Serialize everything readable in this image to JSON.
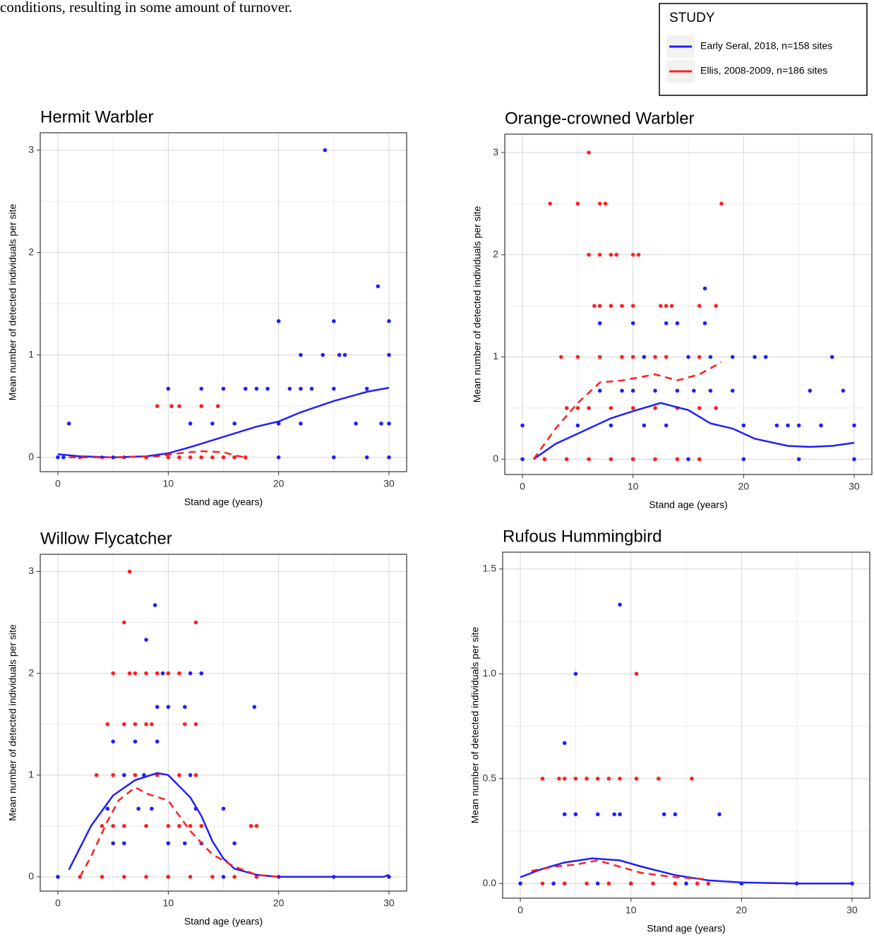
{
  "header_text": "conditions, resulting in some amount of turnover.",
  "legend": {
    "title": "STUDY"
  },
  "chart_data": [
    {
      "type": "scatter",
      "title": "Hermit Warbler",
      "x_label": "Stand age (years)",
      "y_label": "Mean number of detected individuals per site",
      "xlim": [
        -1.6,
        31.6
      ],
      "ylim": [
        -0.14,
        3.17
      ],
      "xticks": [
        0,
        10,
        20,
        30
      ],
      "yticks": [
        0,
        1,
        2,
        3
      ],
      "grid": true,
      "series": [
        {
          "name": "Early Seral, 2018, n=158 sites",
          "color": "#1f1fff",
          "line_style": "solid",
          "x": [
            0,
            0.5,
            1,
            5,
            10,
            13,
            12,
            14,
            15,
            16,
            17,
            18,
            19,
            20,
            20,
            21,
            22,
            22,
            23,
            24,
            24.2,
            25,
            25,
            25.5,
            26,
            27,
            28,
            29,
            29.3,
            30,
            30,
            30,
            30,
            25,
            20,
            16,
            22,
            28
          ],
          "values": [
            0,
            0,
            0.33,
            0,
            0.67,
            0.67,
            0.33,
            0.33,
            0.67,
            0.33,
            0.67,
            0.67,
            0.67,
            1.33,
            0.33,
            0.67,
            1,
            0.33,
            0.67,
            1,
            3,
            1.33,
            0.67,
            1,
            1,
            0.33,
            0.67,
            1.67,
            0.33,
            1.33,
            1,
            0.33,
            0,
            0,
            0,
            0,
            0.67,
            0
          ],
          "fit": {
            "x": [
              0,
              2,
              5,
              8,
              10,
              12,
              15,
              18,
              20,
              22,
              25,
              28,
              30
            ],
            "values": [
              0.03,
              0.01,
              0,
              0.01,
              0.04,
              0.1,
              0.2,
              0.3,
              0.35,
              0.44,
              0.55,
              0.64,
              0.68
            ]
          }
        },
        {
          "name": "Ellis, 2008-2009, n=186 sites",
          "color": "#ff1f1f",
          "line_style": "dashed",
          "x": [
            9,
            10.3,
            11,
            13,
            14.5,
            2,
            4,
            6,
            8,
            10,
            11,
            12,
            13,
            14,
            15,
            16,
            17
          ],
          "values": [
            0.5,
            0.5,
            0.5,
            0.5,
            0.5,
            0,
            0,
            0,
            0,
            0,
            0,
            0,
            0,
            0,
            0,
            0,
            0
          ],
          "fit": {
            "x": [
              1,
              5,
              9,
              11,
              13,
              15,
              16,
              17
            ],
            "values": [
              0,
              0,
              0.01,
              0.04,
              0.06,
              0.05,
              0.02,
              0
            ]
          }
        }
      ]
    },
    {
      "type": "scatter",
      "title": "Orange-crowned Warbler",
      "x_label": "Stand age (years)",
      "y_label": "Mean number of detected individuals per site",
      "xlim": [
        -1.6,
        31.6
      ],
      "ylim": [
        -0.15,
        3.18
      ],
      "xticks": [
        0,
        10,
        20,
        30
      ],
      "yticks": [
        0,
        1,
        2,
        3
      ],
      "grid": true,
      "series": [
        {
          "name": "Early Seral, 2018, n=158 sites",
          "color": "#1f1fff",
          "line_style": "solid",
          "x": [
            0,
            0,
            5,
            7,
            7,
            8,
            9,
            10,
            10,
            11,
            11,
            12,
            13,
            13,
            14,
            14,
            15,
            15.5,
            16.5,
            16.5,
            17,
            17,
            19,
            19,
            20,
            21,
            22,
            23,
            24,
            25,
            26,
            27,
            28,
            29,
            30,
            20,
            25,
            30,
            15,
            10
          ],
          "values": [
            0.33,
            0,
            0.33,
            0.67,
            1.33,
            0.33,
            0.67,
            1.33,
            0.67,
            1,
            0.33,
            0.67,
            1.33,
            0.33,
            1.33,
            0.67,
            1,
            0.67,
            1.67,
            1.33,
            1,
            0.67,
            0.67,
            1,
            0.33,
            1,
            1,
            0.33,
            0.33,
            0.33,
            0.67,
            0.33,
            1,
            0.67,
            0.33,
            0,
            0,
            0,
            0,
            0
          ],
          "fit": {
            "x": [
              1,
              3,
              5,
              8,
              10,
              12.5,
              15,
              17,
              19,
              21,
              24,
              26,
              28,
              30
            ],
            "values": [
              0,
              0.15,
              0.25,
              0.4,
              0.47,
              0.55,
              0.48,
              0.35,
              0.3,
              0.2,
              0.13,
              0.12,
              0.13,
              0.16
            ]
          }
        },
        {
          "name": "Ellis, 2008-2009, n=186 sites",
          "color": "#ff1f1f",
          "line_style": "dashed",
          "x": [
            6,
            2.5,
            5,
            7,
            7.5,
            18,
            6,
            7,
            8,
            8.5,
            10,
            10.5,
            6.5,
            7,
            8,
            9,
            10,
            12.5,
            13,
            13.5,
            16,
            17.5,
            3.5,
            5,
            7,
            9,
            10,
            12,
            13,
            16,
            4,
            5,
            6,
            8,
            10,
            12,
            14,
            16,
            17.5,
            2,
            4,
            6,
            8,
            10,
            12,
            14,
            16
          ],
          "values": [
            3,
            2.5,
            2.5,
            2.5,
            2.5,
            2.5,
            2,
            2,
            2,
            2,
            2,
            2,
            1.5,
            1.5,
            1.5,
            1.5,
            1.5,
            1.5,
            1.5,
            1.5,
            1.5,
            1.5,
            1,
            1,
            1,
            1,
            1,
            1,
            1,
            1,
            0.5,
            0.5,
            0.5,
            0.5,
            0.5,
            0.5,
            0.5,
            0.5,
            0.5,
            0,
            0,
            0,
            0,
            0,
            0,
            0,
            0
          ],
          "fit": {
            "x": [
              1,
              3,
              5,
              7,
              9,
              10.5,
              12,
              14,
              16,
              18
            ],
            "values": [
              0,
              0.3,
              0.55,
              0.75,
              0.77,
              0.8,
              0.83,
              0.77,
              0.83,
              0.95
            ]
          }
        }
      ]
    },
    {
      "type": "scatter",
      "title": "Willow Flycatcher",
      "x_label": "Stand age (years)",
      "y_label": "Mean number of detected individuals per site",
      "xlim": [
        -1.6,
        31.6
      ],
      "ylim": [
        -0.14,
        3.17
      ],
      "xticks": [
        0,
        10,
        20,
        30
      ],
      "yticks": [
        0,
        1,
        2,
        3
      ],
      "grid": true,
      "series": [
        {
          "name": "Early Seral, 2018, n=158 sites",
          "color": "#1f1fff",
          "line_style": "solid",
          "x": [
            0,
            5,
            4.5,
            5,
            6,
            6,
            7,
            7.3,
            8,
            7.8,
            8.5,
            8.8,
            9,
            9,
            9.5,
            10,
            10,
            11.5,
            11.5,
            12,
            12,
            12.5,
            13,
            13,
            15,
            16,
            17.8,
            20,
            25,
            30,
            10,
            15
          ],
          "values": [
            0,
            1.33,
            0.67,
            0.33,
            1,
            0.33,
            1.33,
            0.67,
            2.33,
            1,
            0.67,
            2.67,
            1.67,
            1.33,
            2,
            1.67,
            0.33,
            1.67,
            0.33,
            1,
            2,
            0.67,
            2,
            0.33,
            0.67,
            0.33,
            1.67,
            0,
            0,
            0,
            0,
            0
          ],
          "fit": {
            "x": [
              1,
              3,
              5,
              7,
              9,
              10,
              12,
              13,
              14,
              15,
              16,
              18,
              20,
              25,
              29.5,
              30
            ],
            "values": [
              0.07,
              0.5,
              0.8,
              0.95,
              1.02,
              1,
              0.78,
              0.6,
              0.35,
              0.18,
              0.08,
              0.02,
              0,
              0,
              0,
              0.02
            ]
          }
        },
        {
          "name": "Ellis, 2008-2009, n=186 sites",
          "color": "#ff1f1f",
          "line_style": "dashed",
          "x": [
            6.5,
            6,
            12.5,
            5,
            6.5,
            7,
            8,
            9,
            10,
            11,
            4.5,
            6,
            7,
            8,
            8.5,
            11.5,
            12.5,
            3.5,
            5,
            7,
            9,
            11,
            12.5,
            4,
            5,
            6,
            8,
            10,
            11,
            12,
            13,
            17.5,
            18,
            2,
            4,
            6,
            8,
            10,
            12,
            14,
            16,
            18
          ],
          "values": [
            3,
            2.5,
            2.5,
            2,
            2,
            2,
            2,
            2,
            2,
            2,
            1.5,
            1.5,
            1.5,
            1.5,
            1.5,
            1.5,
            1.5,
            1,
            1,
            1,
            1,
            1,
            1,
            0.5,
            0.5,
            0.5,
            0.5,
            0.5,
            0.5,
            0.5,
            0.5,
            0.5,
            0.5,
            0,
            0,
            0,
            0,
            0,
            0,
            0,
            0,
            0
          ],
          "fit": {
            "x": [
              2,
              3,
              4.5,
              5.5,
              7,
              8,
              10,
              12,
              14,
              16,
              18,
              20
            ],
            "values": [
              0,
              0.2,
              0.55,
              0.75,
              0.88,
              0.82,
              0.75,
              0.45,
              0.22,
              0.1,
              0.02,
              0
            ]
          }
        }
      ]
    },
    {
      "type": "scatter",
      "title": "Rufous Hummingbird",
      "x_label": "Stand age (years)",
      "y_label": "Mean number of detected individuals per site",
      "xlim": [
        -1.6,
        31.6
      ],
      "ylim": [
        -0.07,
        1.58
      ],
      "xticks": [
        0,
        10,
        20,
        30
      ],
      "yticks": [
        {
          "value": 0,
          "label": "0.0"
        },
        {
          "value": 0.5,
          "label": "0.5"
        },
        {
          "value": 1,
          "label": "1.0"
        },
        {
          "value": 1.5,
          "label": "1.5"
        }
      ],
      "grid": true,
      "series": [
        {
          "name": "Early Seral, 2018, n=158 sites",
          "color": "#1f1fff",
          "line_style": "solid",
          "x": [
            0,
            4,
            4,
            5,
            5,
            7,
            8.5,
            9,
            9,
            13,
            14,
            18,
            10,
            15,
            20,
            25,
            30,
            3,
            7
          ],
          "values": [
            0,
            0.67,
            0.33,
            1,
            0.33,
            0.33,
            0.33,
            1.33,
            0.33,
            0.33,
            0.33,
            0.33,
            0,
            0,
            0,
            0,
            0,
            0,
            0
          ],
          "fit": {
            "x": [
              0,
              2,
              4,
              6.5,
              9,
              11,
              14,
              17,
              20,
              25,
              30
            ],
            "values": [
              0.03,
              0.07,
              0.1,
              0.12,
              0.11,
              0.08,
              0.04,
              0.015,
              0.005,
              0,
              0
            ]
          }
        },
        {
          "name": "Ellis, 2008-2009, n=186 sites",
          "color": "#ff1f1f",
          "line_style": "dashed",
          "x": [
            2,
            3.5,
            4,
            5,
            6,
            7,
            8,
            9,
            10.5,
            12.5,
            15.5,
            10.5,
            2,
            4,
            6,
            8,
            10,
            12,
            14,
            16,
            17
          ],
          "values": [
            0.5,
            0.5,
            0.5,
            0.5,
            0.5,
            0.5,
            0.5,
            0.5,
            0.5,
            0.5,
            0.5,
            1,
            0,
            0,
            0,
            0,
            0,
            0,
            0,
            0,
            0
          ],
          "fit": {
            "x": [
              1,
              3,
              5,
              7,
              9,
              11,
              14,
              17
            ],
            "values": [
              0.06,
              0.08,
              0.09,
              0.11,
              0.08,
              0.05,
              0.03,
              0.02
            ]
          }
        }
      ]
    }
  ]
}
